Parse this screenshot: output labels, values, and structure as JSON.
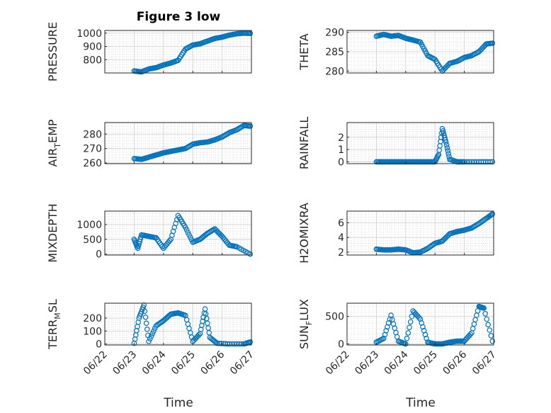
{
  "figure_title": "Figure 3 low",
  "x_axis_label": "Time",
  "x_tick_labels": [
    "06/22",
    "06/23",
    "06/24",
    "06/25",
    "06/26",
    "06/27"
  ],
  "marker_color": "#0072BD",
  "chart_data": [
    {
      "type": "scatter",
      "ylabel_main": "PRESSURE",
      "ylabel_sub": "",
      "ylim": [
        700,
        1020
      ],
      "yticks": [
        800,
        900,
        1000
      ],
      "grid": true,
      "x": [
        "2023-06-23T00:00",
        "2023-06-23T06:00",
        "2023-06-23T12:00",
        "2023-06-23T18:00",
        "2023-06-24T00:00",
        "2023-06-24T06:00",
        "2023-06-24T12:00",
        "2023-06-24T18:00",
        "2023-06-25T00:00",
        "2023-06-25T06:00",
        "2023-06-25T12:00",
        "2023-06-25T18:00",
        "2023-06-26T00:00",
        "2023-06-26T06:00",
        "2023-06-26T12:00",
        "2023-06-26T18:00",
        "2023-06-26T23:00"
      ],
      "values": [
        715,
        708,
        730,
        740,
        760,
        775,
        795,
        880,
        910,
        920,
        940,
        960,
        970,
        985,
        995,
        1000,
        998
      ]
    },
    {
      "type": "scatter",
      "ylabel_main": "THETA",
      "ylabel_sub": "",
      "ylim": [
        279.5,
        290.5
      ],
      "yticks": [
        280,
        285,
        290
      ],
      "grid": true,
      "x": [
        "2023-06-23T00:00",
        "2023-06-23T06:00",
        "2023-06-23T12:00",
        "2023-06-23T18:00",
        "2023-06-24T00:00",
        "2023-06-24T06:00",
        "2023-06-24T12:00",
        "2023-06-24T18:00",
        "2023-06-25T00:00",
        "2023-06-25T06:00",
        "2023-06-25T12:00",
        "2023-06-25T18:00",
        "2023-06-26T00:00",
        "2023-06-26T06:00",
        "2023-06-26T12:00",
        "2023-06-26T18:00",
        "2023-06-26T23:00"
      ],
      "values": [
        289,
        289.5,
        289,
        289.2,
        288.5,
        288,
        287.5,
        284,
        283,
        280,
        282,
        282.5,
        283.5,
        284,
        285,
        287,
        287.2
      ]
    },
    {
      "type": "scatter",
      "ylabel_main": "AIR",
      "ylabel_sub": "T",
      "ylabel_tail": "EMP",
      "ylim": [
        259.5,
        288
      ],
      "yticks": [
        260,
        270,
        280
      ],
      "grid": true,
      "x": [
        "2023-06-23T00:00",
        "2023-06-23T06:00",
        "2023-06-23T12:00",
        "2023-06-23T18:00",
        "2023-06-24T00:00",
        "2023-06-24T06:00",
        "2023-06-24T12:00",
        "2023-06-24T18:00",
        "2023-06-25T00:00",
        "2023-06-25T06:00",
        "2023-06-25T12:00",
        "2023-06-25T18:00",
        "2023-06-26T00:00",
        "2023-06-26T06:00",
        "2023-06-26T12:00",
        "2023-06-26T18:00",
        "2023-06-26T23:00"
      ],
      "values": [
        263,
        262.5,
        264,
        265.5,
        267,
        268,
        269,
        270,
        273,
        274,
        274.5,
        276,
        278,
        281,
        283,
        286,
        285.5
      ]
    },
    {
      "type": "scatter",
      "ylabel_main": "RAINFALL",
      "ylabel_sub": "",
      "ylim": [
        -0.15,
        3.2
      ],
      "yticks": [
        0,
        1,
        2
      ],
      "grid": true,
      "x": [
        "2023-06-23T00:00",
        "2023-06-23T06:00",
        "2023-06-23T12:00",
        "2023-06-23T18:00",
        "2023-06-24T00:00",
        "2023-06-24T06:00",
        "2023-06-24T12:00",
        "2023-06-24T18:00",
        "2023-06-25T00:00",
        "2023-06-25T03:00",
        "2023-06-25T06:00",
        "2023-06-25T09:00",
        "2023-06-25T12:00",
        "2023-06-25T18:00",
        "2023-06-26T00:00",
        "2023-06-26T12:00",
        "2023-06-26T23:00"
      ],
      "values": [
        0,
        0,
        0,
        0,
        0,
        0,
        0,
        0,
        0,
        0.6,
        2.7,
        1.6,
        0.2,
        0,
        0,
        0,
        0
      ]
    },
    {
      "type": "scatter",
      "ylabel_main": "MIXDEPTH",
      "ylabel_sub": "",
      "ylim": [
        -30,
        1450
      ],
      "yticks": [
        0,
        500,
        1000
      ],
      "grid": true,
      "x": [
        "2023-06-23T00:00",
        "2023-06-23T03:00",
        "2023-06-23T06:00",
        "2023-06-23T12:00",
        "2023-06-23T18:00",
        "2023-06-24T00:00",
        "2023-06-24T06:00",
        "2023-06-24T12:00",
        "2023-06-24T18:00",
        "2023-06-25T00:00",
        "2023-06-25T06:00",
        "2023-06-25T12:00",
        "2023-06-25T18:00",
        "2023-06-26T00:00",
        "2023-06-26T06:00",
        "2023-06-26T12:00",
        "2023-06-26T23:00"
      ],
      "values": [
        500,
        200,
        650,
        600,
        550,
        200,
        500,
        1300,
        900,
        400,
        500,
        700,
        850,
        600,
        300,
        250,
        0
      ]
    },
    {
      "type": "scatter",
      "ylabel_main": "H2OMIXRA",
      "ylabel_sub": "",
      "ylim": [
        1.6,
        7.6
      ],
      "yticks": [
        2,
        4,
        6
      ],
      "grid": true,
      "x": [
        "2023-06-23T00:00",
        "2023-06-23T06:00",
        "2023-06-23T12:00",
        "2023-06-23T18:00",
        "2023-06-24T00:00",
        "2023-06-24T06:00",
        "2023-06-24T12:00",
        "2023-06-24T18:00",
        "2023-06-25T00:00",
        "2023-06-25T06:00",
        "2023-06-25T12:00",
        "2023-06-25T18:00",
        "2023-06-26T00:00",
        "2023-06-26T06:00",
        "2023-06-26T12:00",
        "2023-06-26T18:00",
        "2023-06-26T23:00"
      ],
      "values": [
        2.4,
        2.3,
        2.3,
        2.4,
        2.3,
        1.9,
        2.0,
        2.5,
        3.2,
        3.5,
        4.5,
        4.8,
        5.0,
        5.3,
        5.9,
        6.6,
        7.2
      ]
    },
    {
      "type": "scatter",
      "ylabel_main": "TERR",
      "ylabel_sub": "M",
      "ylabel_tail": "SL",
      "ylim": [
        -8,
        315
      ],
      "yticks": [
        0,
        100,
        200
      ],
      "grid": true,
      "x": [
        "2023-06-23T00:00",
        "2023-06-23T04:00",
        "2023-06-23T08:00",
        "2023-06-23T12:00",
        "2023-06-23T18:00",
        "2023-06-24T00:00",
        "2023-06-24T06:00",
        "2023-06-24T12:00",
        "2023-06-24T18:00",
        "2023-06-25T00:00",
        "2023-06-25T06:00",
        "2023-06-25T10:00",
        "2023-06-25T14:00",
        "2023-06-25T20:00",
        "2023-06-26T06:00",
        "2023-06-26T18:00",
        "2023-06-26T23:00"
      ],
      "values": [
        5,
        200,
        300,
        20,
        140,
        180,
        230,
        240,
        220,
        20,
        80,
        270,
        50,
        5,
        0,
        0,
        15
      ]
    },
    {
      "type": "scatter",
      "ylabel_main": "SUN",
      "ylabel_sub": "F",
      "ylabel_tail": "LUX",
      "ylim": [
        -20,
        740
      ],
      "yticks": [
        0,
        500
      ],
      "grid": true,
      "x": [
        "2023-06-23T00:00",
        "2023-06-23T06:00",
        "2023-06-23T12:00",
        "2023-06-23T18:00",
        "2023-06-24T00:00",
        "2023-06-24T06:00",
        "2023-06-24T12:00",
        "2023-06-24T18:00",
        "2023-06-25T00:00",
        "2023-06-25T06:00",
        "2023-06-25T12:00",
        "2023-06-25T18:00",
        "2023-06-26T00:00",
        "2023-06-26T06:00",
        "2023-06-26T12:00",
        "2023-06-26T16:00",
        "2023-06-26T23:00"
      ],
      "values": [
        30,
        100,
        520,
        50,
        0,
        600,
        450,
        30,
        0,
        0,
        30,
        50,
        50,
        200,
        680,
        650,
        50
      ]
    }
  ]
}
